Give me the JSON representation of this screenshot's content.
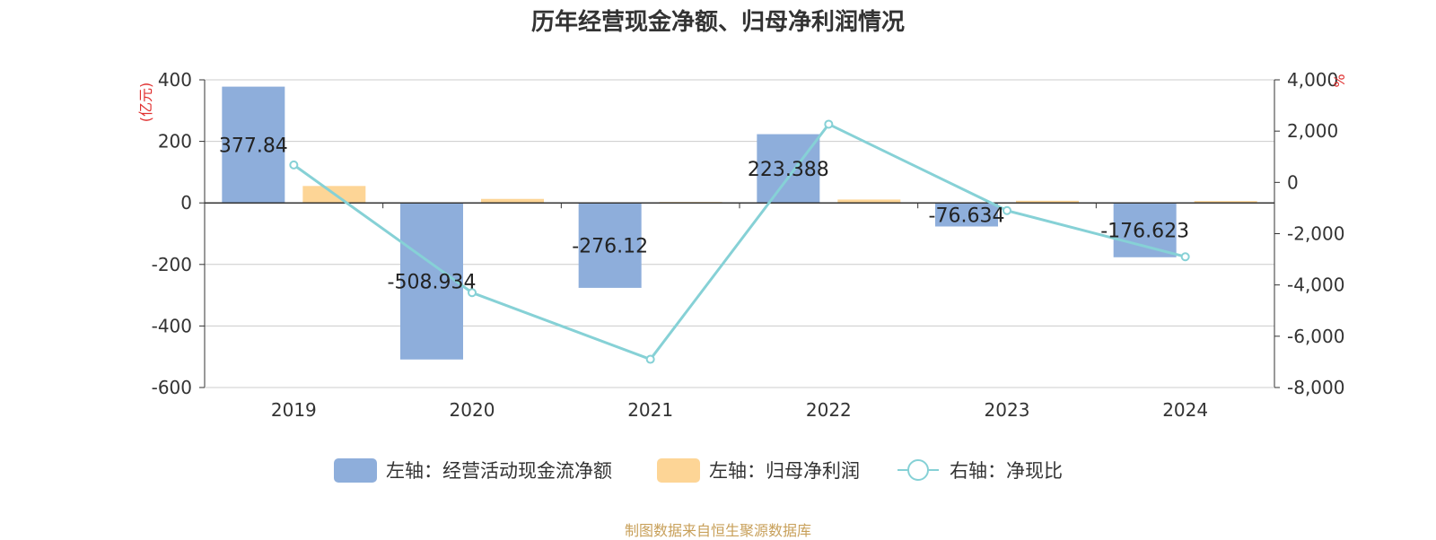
{
  "chart_data": {
    "type": "bar",
    "title": "历年经营现金净额、归母净利润情况",
    "categories": [
      "2019",
      "2020",
      "2021",
      "2022",
      "2023",
      "2024"
    ],
    "left_axis": {
      "unit": "(亿元)",
      "ylim": [
        -600,
        400
      ],
      "ticks": [
        400,
        200,
        0,
        -200,
        -400,
        -600
      ],
      "tick_labels": [
        "400",
        "200",
        "0",
        "-200",
        "-400",
        "-600"
      ]
    },
    "right_axis": {
      "unit": "%",
      "ylim": [
        -8000,
        4000
      ],
      "ticks": [
        4000,
        2000,
        0,
        -2000,
        -4000,
        -6000,
        -8000
      ],
      "tick_labels": [
        "4,000",
        "2,000",
        "0",
        "-2,000",
        "-4,000",
        "-6,000",
        "-8,000"
      ]
    },
    "series": [
      {
        "name": "左轴：经营活动现金流净额",
        "type": "bar",
        "axis": "left",
        "color": "#8eaedb",
        "values": [
          377.84,
          -508.934,
          -276.12,
          223.388,
          -76.634,
          -176.623
        ],
        "labels": [
          "377.84",
          "-508.934",
          "-276.12",
          "223.388",
          "-76.634",
          "-176.623"
        ]
      },
      {
        "name": "左轴：归母净利润",
        "type": "bar",
        "axis": "left",
        "color": "#fdd596",
        "values": [
          55,
          13,
          3,
          11,
          7,
          6
        ]
      },
      {
        "name": "右轴：净现比",
        "type": "line",
        "axis": "right",
        "color": "#86d1d6",
        "values": [
          680,
          -4300,
          -6900,
          2270,
          -1100,
          -2900
        ]
      }
    ],
    "legend_position": "bottom"
  },
  "footer": {
    "source": "制图数据来自恒生聚源数据库",
    "source_color": "#c8a05a"
  },
  "colors": {
    "axis_unit": "#e03030",
    "grid": "#cccccc",
    "axis_line": "#333333",
    "tick_text": "#333333"
  }
}
